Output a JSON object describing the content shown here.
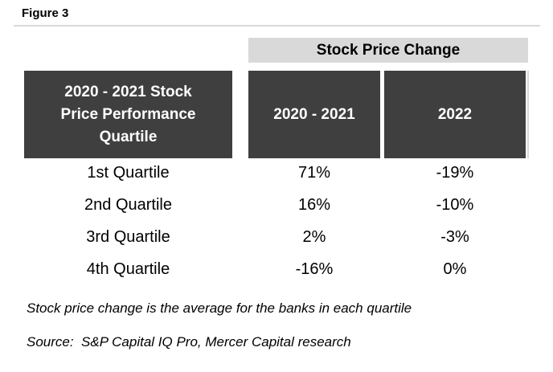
{
  "figure_label": "Figure 3",
  "table": {
    "banner": "Stock Price Change",
    "row_header_lines": [
      "2020 - 2021 Stock",
      "Price Performance",
      "Quartile"
    ],
    "columns": [
      "2020 - 2021",
      "2022"
    ],
    "rows": [
      [
        "1st Quartile",
        "71%",
        "-19%"
      ],
      [
        "2nd Quartile",
        "16%",
        "-10%"
      ],
      [
        "3rd Quartile",
        "2%",
        "-3%"
      ],
      [
        "4th Quartile",
        "-16%",
        "0%"
      ]
    ]
  },
  "footnotes": {
    "note": "Stock price change is the average for the banks in each quartile",
    "source": "Source:  S&P Capital IQ Pro, Mercer Capital research"
  },
  "colors": {
    "header_dark": "#3f3f3f",
    "banner_gray": "#d9d9d9",
    "header_text": "#ffffff",
    "body_text": "#000000"
  },
  "chart_data": {
    "type": "table",
    "title": "Stock Price Change",
    "row_header_label": "2020 - 2021 Stock Price Performance Quartile",
    "categories": [
      "1st Quartile",
      "2nd Quartile",
      "3rd Quartile",
      "4th Quartile"
    ],
    "series": [
      {
        "name": "2020 - 2021",
        "values": [
          71,
          16,
          2,
          -16
        ]
      },
      {
        "name": "2022",
        "values": [
          -19,
          -10,
          -3,
          0
        ]
      }
    ],
    "units": "percent",
    "notes": [
      "Stock price change is the average for the banks in each quartile",
      "Source:  S&P Capital IQ Pro, Mercer Capital research"
    ]
  }
}
